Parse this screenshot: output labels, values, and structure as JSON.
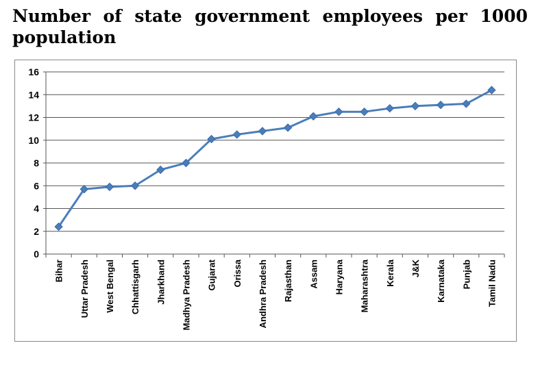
{
  "title": "Number of state government employees per 1000 population",
  "chart_data": {
    "type": "line",
    "title": "Number of state government employees per 1000 population",
    "xlabel": "",
    "ylabel": "",
    "ylim": [
      0,
      16
    ],
    "yticks": [
      0,
      2,
      4,
      6,
      8,
      10,
      12,
      14,
      16
    ],
    "grid": true,
    "color": "#4a7ebb",
    "marker": "diamond",
    "categories": [
      "Bihar",
      "Uttar Pradesh",
      "West Bengal",
      "Chhattisgarh",
      "Jharkhand",
      "Madhya Pradesh",
      "Gujarat",
      "Orissa",
      "Andhra Pradesh",
      "Rajasthan",
      "Assam",
      "Haryana",
      "Maharashtra",
      "Kerala",
      "J&K",
      "Karnataka",
      "Punjab",
      "Tamil Nadu"
    ],
    "values": [
      2.4,
      5.7,
      5.9,
      6.0,
      7.4,
      8.0,
      10.1,
      10.5,
      10.8,
      11.1,
      12.1,
      12.5,
      12.5,
      12.8,
      13.0,
      13.1,
      13.2,
      14.4
    ]
  }
}
